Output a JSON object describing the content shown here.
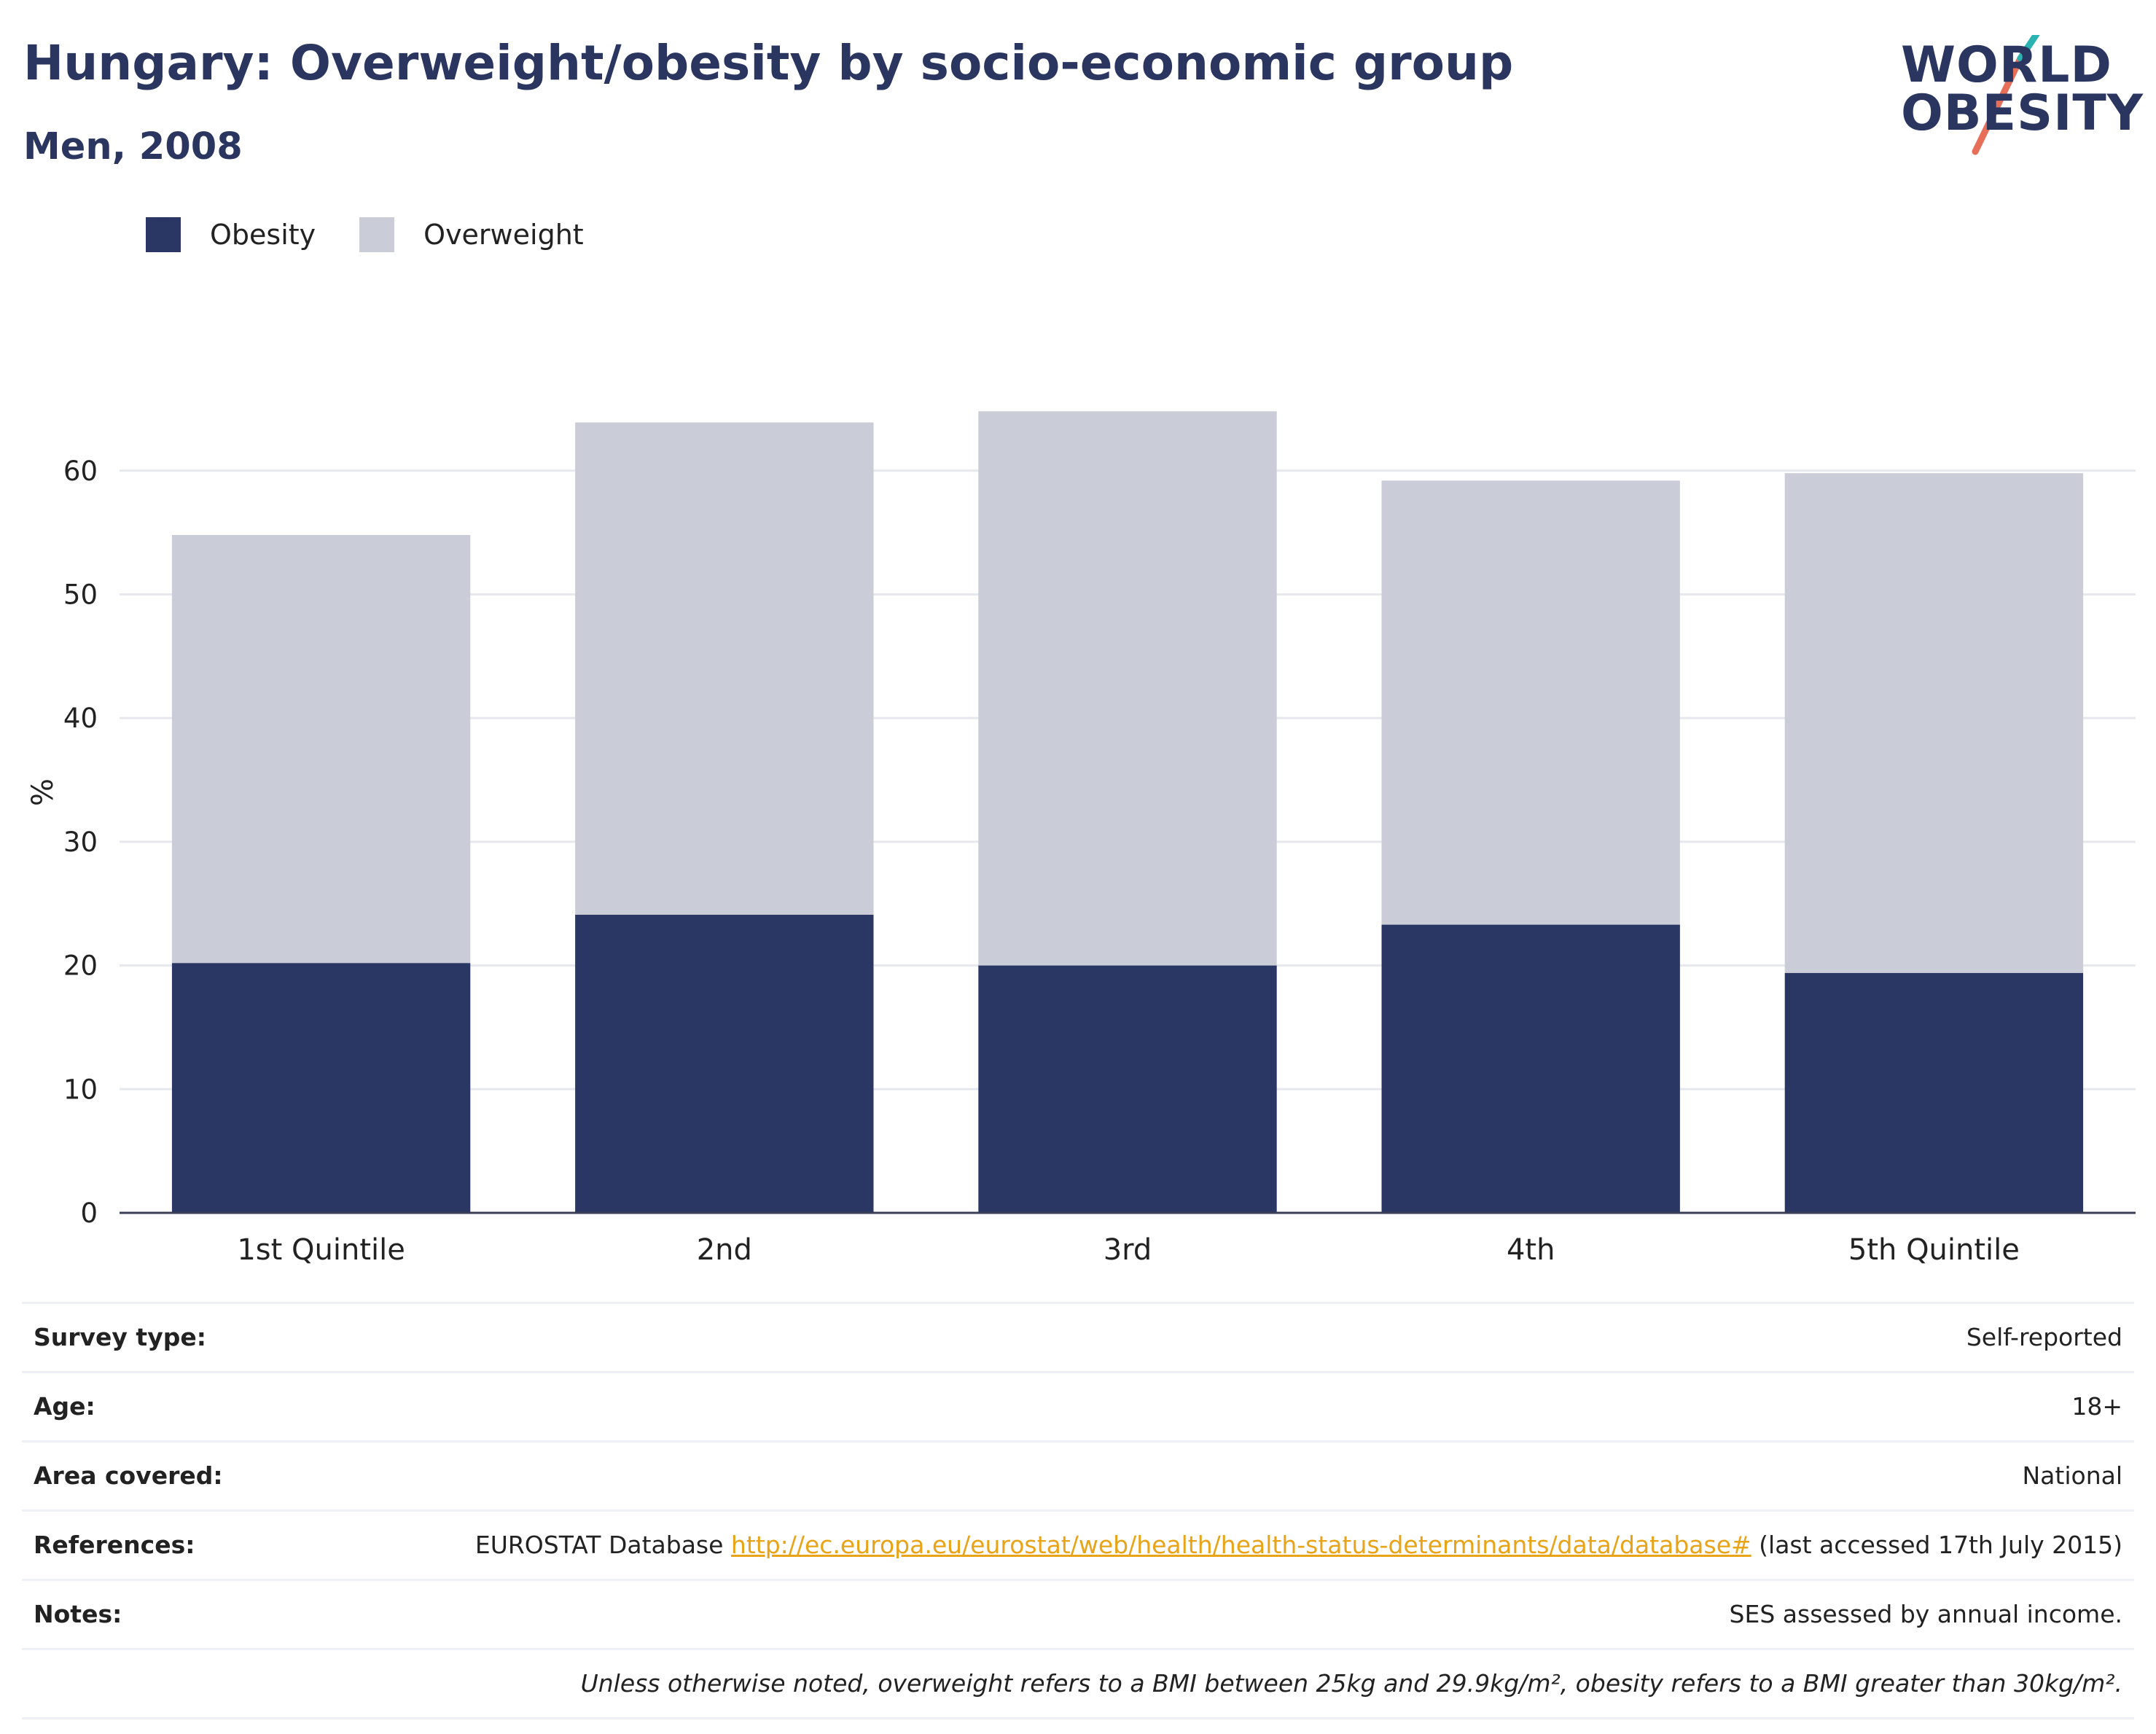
{
  "header": {
    "title": "Hungary: Overweight/obesity by socio-economic group",
    "subtitle": "Men, 2008"
  },
  "logo": {
    "line1": "WORLD",
    "line2": "OBESITY"
  },
  "legend": [
    {
      "label": "Obesity",
      "color": "#2a3663"
    },
    {
      "label": "Overweight",
      "color": "#cacdd8"
    }
  ],
  "chart_data": {
    "type": "bar",
    "stacked": true,
    "categories": [
      "1st Quintile",
      "2nd",
      "3rd",
      "4th",
      "5th Quintile"
    ],
    "series": [
      {
        "name": "Obesity",
        "color": "#2a3663",
        "values": [
          20.2,
          24.1,
          20.0,
          23.3,
          19.4
        ]
      },
      {
        "name": "Overweight",
        "color": "#cacdd8",
        "values": [
          34.6,
          39.8,
          44.8,
          35.9,
          40.4
        ]
      }
    ],
    "ylabel": "%",
    "ylim": [
      0,
      68
    ],
    "yticks": [
      0,
      10,
      20,
      30,
      40,
      50,
      60
    ],
    "grid": true,
    "legend_position": "top-left"
  },
  "meta": {
    "survey_type_label": "Survey type:",
    "survey_type_value": "Self-reported",
    "age_label": "Age:",
    "age_value": "18+",
    "area_label": "Area covered:",
    "area_value": "National",
    "references_label": "References:",
    "references_prefix": "EUROSTAT Database ",
    "references_link": "http://ec.europa.eu/eurostat/web/health/health-status-determinants/data/database#",
    "references_suffix": " (last accessed 17th July 2015)",
    "notes_label": "Notes:",
    "notes_value": "SES assessed by annual income.",
    "footnote": "Unless otherwise noted, overweight refers to a BMI between 25kg and 29.9kg/m², obesity refers to a BMI greater than 30kg/m²."
  }
}
